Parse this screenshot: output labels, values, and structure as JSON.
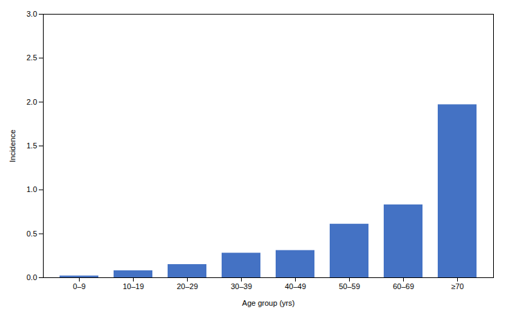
{
  "chart_data": {
    "type": "bar",
    "categories": [
      "0–9",
      "10–19",
      "20–29",
      "30–39",
      "40–49",
      "50–59",
      "60–69",
      "≥70"
    ],
    "values": [
      0.02,
      0.08,
      0.15,
      0.28,
      0.31,
      0.61,
      0.83,
      1.97
    ],
    "color": "#4472c4",
    "xlabel": "Age group (yrs)",
    "ylabel": "Incidence",
    "ylim": [
      0.0,
      3.0
    ],
    "yticks": [
      {
        "value": 0,
        "label": "0.0"
      },
      0.5,
      {
        "value": 1,
        "label": "1.0"
      },
      1.5,
      {
        "value": 2,
        "label": "2.0"
      },
      2.5,
      {
        "value": 3,
        "label": "3.0"
      }
    ],
    "grid": false
  }
}
